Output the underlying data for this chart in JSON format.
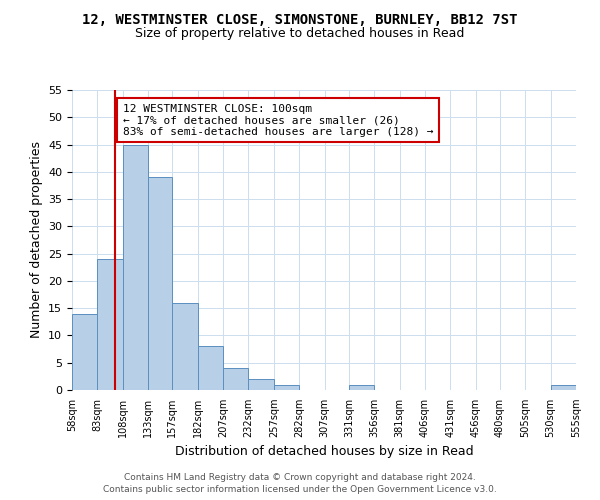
{
  "title": "12, WESTMINSTER CLOSE, SIMONSTONE, BURNLEY, BB12 7ST",
  "subtitle": "Size of property relative to detached houses in Read",
  "xlabel": "Distribution of detached houses by size in Read",
  "ylabel": "Number of detached properties",
  "bin_edges": [
    58,
    83,
    108,
    133,
    157,
    182,
    207,
    232,
    257,
    282,
    307,
    331,
    356,
    381,
    406,
    431,
    456,
    480,
    505,
    530,
    555
  ],
  "bin_labels": [
    "58sqm",
    "83sqm",
    "108sqm",
    "133sqm",
    "157sqm",
    "182sqm",
    "207sqm",
    "232sqm",
    "257sqm",
    "282sqm",
    "307sqm",
    "331sqm",
    "356sqm",
    "381sqm",
    "406sqm",
    "431sqm",
    "456sqm",
    "480sqm",
    "505sqm",
    "530sqm",
    "555sqm"
  ],
  "counts": [
    14,
    24,
    45,
    39,
    16,
    8,
    4,
    2,
    1,
    0,
    0,
    1,
    0,
    0,
    0,
    0,
    0,
    0,
    0,
    1
  ],
  "bar_color": "#b8cfe8",
  "bar_edge_color": "#5a8fc0",
  "property_line_x": 100,
  "property_line_color": "#cc0000",
  "ylim": [
    0,
    55
  ],
  "yticks": [
    0,
    5,
    10,
    15,
    20,
    25,
    30,
    35,
    40,
    45,
    50,
    55
  ],
  "annotation_text": "12 WESTMINSTER CLOSE: 100sqm\n← 17% of detached houses are smaller (26)\n83% of semi-detached houses are larger (128) →",
  "annotation_box_color": "#ffffff",
  "annotation_box_edgecolor": "#cc0000",
  "footer_line1": "Contains HM Land Registry data © Crown copyright and database right 2024.",
  "footer_line2": "Contains public sector information licensed under the Open Government Licence v3.0.",
  "background_color": "#ffffff",
  "grid_color": "#ccddee"
}
